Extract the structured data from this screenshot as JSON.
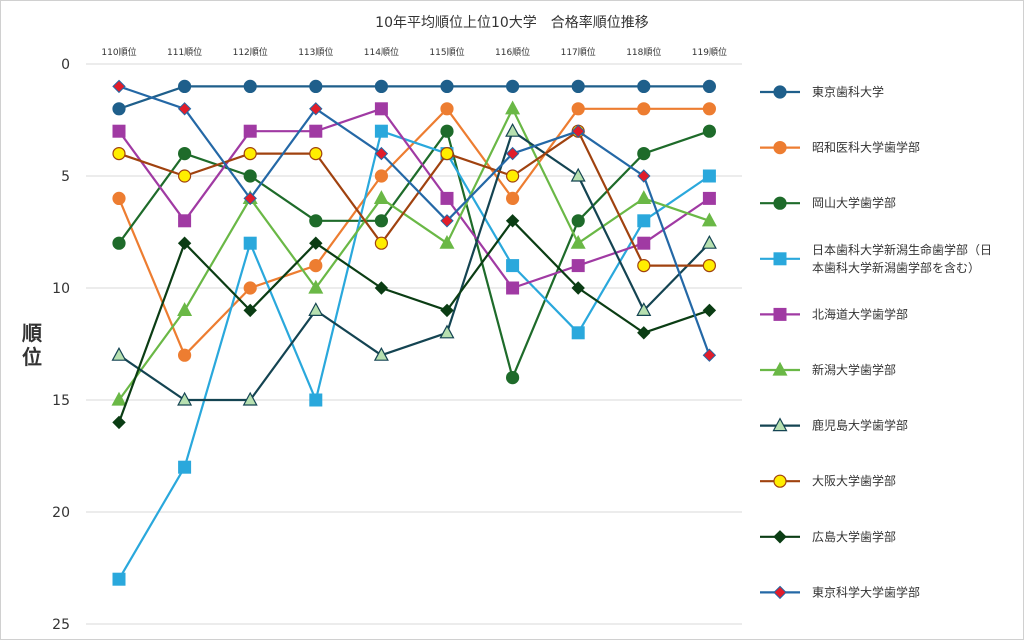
{
  "chart_data": {
    "type": "line",
    "title": "10年平均順位上位10大学　合格率順位推移",
    "ylabel": "順位",
    "xlabel": "",
    "categories": [
      "110順位",
      "111順位",
      "112順位",
      "113順位",
      "114順位",
      "115順位",
      "116順位",
      "117順位",
      "118順位",
      "119順位"
    ],
    "ylim": [
      0,
      25
    ],
    "y_inverted": true,
    "yticks": [
      0,
      5,
      10,
      15,
      20,
      25
    ],
    "grid": "horizontal",
    "legend_position": "right",
    "series": [
      {
        "name": "東京歯科大学",
        "color": "#1f5f8b",
        "marker": "circle",
        "fill": "#1f5f8b",
        "values": [
          2,
          1,
          1,
          1,
          1,
          1,
          1,
          1,
          1,
          1
        ]
      },
      {
        "name": "昭和医科大学歯学部",
        "color": "#ed7d31",
        "marker": "circle",
        "fill": "#ed7d31",
        "values": [
          6,
          13,
          10,
          9,
          5,
          2,
          6,
          2,
          2,
          2
        ]
      },
      {
        "name": "岡山大学歯学部",
        "color": "#1e6b2a",
        "marker": "circle",
        "fill": "#1e6b2a",
        "values": [
          8,
          4,
          5,
          7,
          7,
          3,
          14,
          7,
          4,
          3
        ]
      },
      {
        "name": "日本歯科大学新潟生命歯学部（日本歯科大学新潟歯学部を含む）",
        "lines": [
          "日本歯科大学新潟生命歯学部（日",
          "本歯科大学新潟歯学部を含む）"
        ],
        "color": "#2aa8dc",
        "marker": "square",
        "fill": "#2aa8dc",
        "values": [
          23,
          18,
          8,
          15,
          3,
          4,
          9,
          12,
          7,
          5
        ]
      },
      {
        "name": "北海道大学歯学部",
        "color": "#a03aa3",
        "marker": "square",
        "fill": "#a03aa3",
        "values": [
          3,
          7,
          3,
          3,
          2,
          6,
          10,
          9,
          8,
          6
        ]
      },
      {
        "name": "新潟大学歯学部",
        "color": "#6ab846",
        "marker": "triangle",
        "fill": "#6ab846",
        "values": [
          15,
          11,
          6,
          10,
          6,
          8,
          2,
          8,
          6,
          7
        ]
      },
      {
        "name": "鹿児島大学歯学部",
        "color": "#144452",
        "marker": "triangle",
        "fill": "#b7e0b0",
        "values": [
          13,
          15,
          15,
          11,
          13,
          12,
          3,
          5,
          11,
          8
        ]
      },
      {
        "name": "大阪大学歯学部",
        "color": "#a0420f",
        "marker": "circle",
        "fill": "#ffee00",
        "values": [
          4,
          5,
          4,
          4,
          8,
          4,
          5,
          3,
          9,
          9
        ]
      },
      {
        "name": "広島大学歯学部",
        "color": "#0b3d14",
        "marker": "diamond",
        "fill": "#0b3d14",
        "values": [
          16,
          8,
          11,
          8,
          10,
          11,
          7,
          10,
          12,
          11
        ]
      },
      {
        "name": "東京科学大学歯学部",
        "color": "#2468a6",
        "marker": "diamond",
        "fill": "#e11d2a",
        "values": [
          1,
          2,
          6,
          2,
          4,
          7,
          4,
          3,
          5,
          13
        ]
      }
    ]
  }
}
